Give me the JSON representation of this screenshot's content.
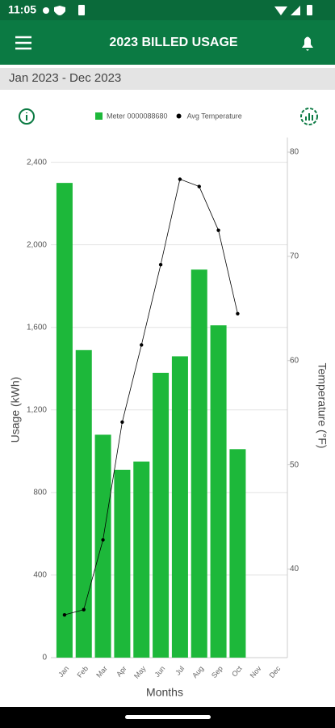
{
  "status_bar": {
    "time": "11:05"
  },
  "header": {
    "title": "2023 BILLED USAGE"
  },
  "date_range": "Jan 2023 - Dec 2023",
  "chart_data": {
    "type": "bar",
    "categories": [
      "Jan",
      "Feb",
      "Mar",
      "Apr",
      "May",
      "Jun",
      "Jul",
      "Aug",
      "Sep",
      "Oct",
      "Nov",
      "Dec"
    ],
    "series": [
      {
        "name": "Meter 0000088680",
        "type": "bar",
        "color": "#1db83a",
        "values": [
          2300,
          1490,
          1080,
          910,
          950,
          1380,
          1460,
          1880,
          1610,
          1010,
          null,
          null
        ]
      },
      {
        "name": "Avg Temperature",
        "type": "line",
        "color": "#000000",
        "axis": "y2",
        "values": [
          35.6,
          36.1,
          42.8,
          54.1,
          61.5,
          69.2,
          77.4,
          76.7,
          72.5,
          64.5,
          null,
          null
        ]
      }
    ],
    "ylabel": "Usage (kWh)",
    "y2label": "Temperature (°F)",
    "xlabel": "Months",
    "ylim": [
      0,
      2520
    ],
    "yticks": [
      0,
      400,
      800,
      {
        "value": 1200,
        "label": "1,200"
      },
      {
        "value": 1600,
        "label": "1,600"
      },
      {
        "value": 2000,
        "label": "2,000"
      },
      {
        "value": 2400,
        "label": "2,400"
      }
    ],
    "y2lim": [
      31.5,
      81.4
    ],
    "y2ticks": [
      40,
      50,
      60,
      70,
      80
    ],
    "grid": true
  }
}
